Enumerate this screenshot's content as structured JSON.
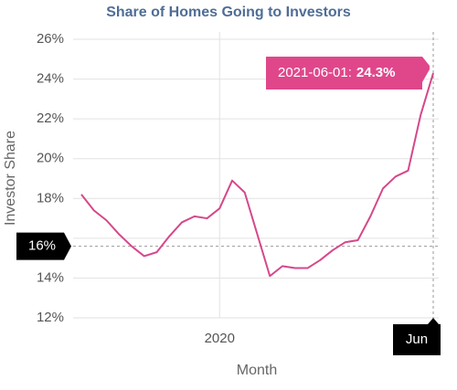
{
  "chart_data": {
    "type": "line",
    "title": "Share of Homes Going to Investors",
    "x_label": "Month",
    "y_label": "Investor Share",
    "color": "#d6478b",
    "x": [
      "2019-02-01",
      "2019-03-01",
      "2019-04-01",
      "2019-05-01",
      "2019-06-01",
      "2019-07-01",
      "2019-08-01",
      "2019-09-01",
      "2019-10-01",
      "2019-11-01",
      "2019-12-01",
      "2020-01-01",
      "2020-02-01",
      "2020-03-01",
      "2020-04-01",
      "2020-05-01",
      "2020-06-01",
      "2020-07-01",
      "2020-08-01",
      "2020-09-01",
      "2020-10-01",
      "2020-11-01",
      "2020-12-01",
      "2021-01-01",
      "2021-02-01",
      "2021-03-01",
      "2021-04-01",
      "2021-05-01",
      "2021-06-01"
    ],
    "values": [
      18.2,
      17.4,
      16.9,
      16.2,
      15.6,
      15.1,
      15.3,
      16.1,
      16.8,
      17.1,
      17.0,
      17.5,
      18.9,
      18.3,
      16.2,
      14.1,
      14.6,
      14.5,
      14.5,
      14.9,
      15.4,
      15.8,
      15.9,
      17.1,
      18.5,
      19.1,
      19.4,
      22.2,
      24.3
    ],
    "xlim": [
      "2019-01-01",
      "2021-07-01"
    ],
    "xticks": [
      {
        "value": "2020-01-01",
        "label": "2020"
      }
    ],
    "ylim": [
      12,
      26
    ],
    "yticks": [
      {
        "value": 12,
        "label": "12%"
      },
      {
        "value": 14,
        "label": "14%"
      },
      {
        "value": 16,
        "label": "16%"
      },
      {
        "value": 18,
        "label": "18%"
      },
      {
        "value": 20,
        "label": "20%"
      },
      {
        "value": 22,
        "label": "22%"
      },
      {
        "value": 24,
        "label": "24%"
      },
      {
        "value": 26,
        "label": "26%"
      }
    ],
    "grid": true,
    "crosshair": {
      "x": {
        "value": "2021-06-01",
        "label": "Jun"
      },
      "y": {
        "value": 15.6,
        "label": "16%"
      }
    },
    "tooltip": {
      "label": "2021-06-01:",
      "value_label": "24.3%"
    }
  }
}
